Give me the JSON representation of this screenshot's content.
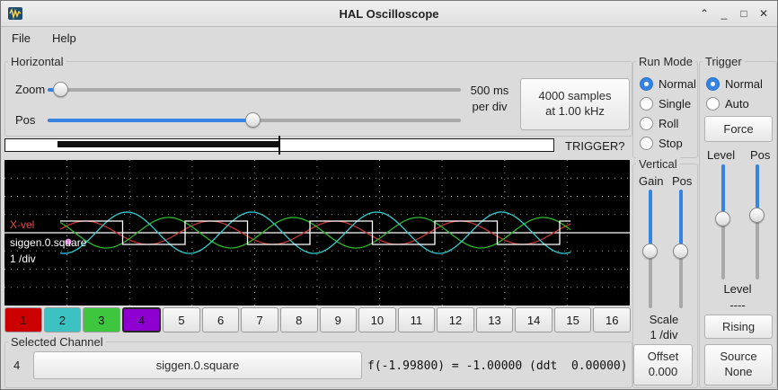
{
  "ui": {
    "accent": "#3584e4",
    "scope_bg": "#000000"
  },
  "titlebar": {
    "title": "HAL Oscilloscope",
    "controls": {
      "shade": "⌃",
      "minimize": "_",
      "maximize": "□",
      "close": "✕"
    }
  },
  "menu": {
    "file": "File",
    "help": "Help"
  },
  "horizontal": {
    "label": "Horizontal",
    "zoom_label": "Zoom",
    "pos_label": "Pos",
    "per_div_line1": "500 ms",
    "per_div_line2": "per div",
    "samples_line1": "4000 samples",
    "samples_line2": "at 1.00 kHz",
    "trigger_status": "TRIGGER?"
  },
  "run_mode": {
    "label": "Run Mode",
    "options": [
      {
        "label": "Normal",
        "selected": true
      },
      {
        "label": "Single",
        "selected": false
      },
      {
        "label": "Roll",
        "selected": false
      },
      {
        "label": "Stop",
        "selected": false
      }
    ]
  },
  "trigger_panel": {
    "label": "Trigger",
    "options": [
      {
        "label": "Normal",
        "selected": true
      },
      {
        "label": "Auto",
        "selected": false
      }
    ],
    "force_button": "Force",
    "level_slider_label": "Level",
    "pos_slider_label": "Pos",
    "level_label": "Level",
    "level_value": "----",
    "edge_button": "Rising",
    "source_label": "Source",
    "source_value": "None"
  },
  "vertical_panel": {
    "label": "Vertical",
    "gain_label": "Gain",
    "pos_label": "Pos",
    "scale_label": "Scale",
    "scale_value": "1 /div",
    "offset_label": "Offset",
    "offset_value": "0.000"
  },
  "scope": {
    "overlays": {
      "channel_name_red": "X-vel",
      "channel_name_white": "siggen.0.square",
      "scale": "1 /div"
    },
    "cursor_dot_color": "#dd86dd",
    "waves": [
      {
        "name": "ch1-red",
        "type": "sine",
        "color": "#c23434",
        "amp": 13,
        "period": 139,
        "phase": 0.3
      },
      {
        "name": "ch3-green",
        "type": "sine",
        "color": "#2eb82e",
        "amp": 17,
        "period": 139,
        "phase": 2.4
      },
      {
        "name": "ch2-cyan",
        "type": "sine",
        "color": "#31cfcf",
        "amp": 23,
        "period": 139,
        "phase": 4.5
      },
      {
        "name": "ch4-square",
        "type": "square",
        "color": "#ffffff",
        "amp": 13,
        "period": 139
      }
    ]
  },
  "channels": {
    "items": [
      {
        "label": "1",
        "color": "#cc0000",
        "selected": false
      },
      {
        "label": "2",
        "color": "#3cc2c2",
        "selected": false
      },
      {
        "label": "3",
        "color": "#3fc63f",
        "selected": false
      },
      {
        "label": "4",
        "color": "#8e00cf",
        "selected": true
      },
      {
        "label": "5",
        "color": "",
        "selected": false
      },
      {
        "label": "6",
        "color": "",
        "selected": false
      },
      {
        "label": "7",
        "color": "",
        "selected": false
      },
      {
        "label": "8",
        "color": "",
        "selected": false
      },
      {
        "label": "9",
        "color": "",
        "selected": false
      },
      {
        "label": "10",
        "color": "",
        "selected": false
      },
      {
        "label": "11",
        "color": "",
        "selected": false
      },
      {
        "label": "12",
        "color": "",
        "selected": false
      },
      {
        "label": "13",
        "color": "",
        "selected": false
      },
      {
        "label": "14",
        "color": "",
        "selected": false
      },
      {
        "label": "15",
        "color": "",
        "selected": false
      },
      {
        "label": "16",
        "color": "",
        "selected": false
      }
    ]
  },
  "selected_channel": {
    "label": "Selected Channel",
    "number": "4",
    "name_button": "siggen.0.square",
    "readout": "f(-1.99800) = -1.00000 (ddt  0.00000)"
  }
}
